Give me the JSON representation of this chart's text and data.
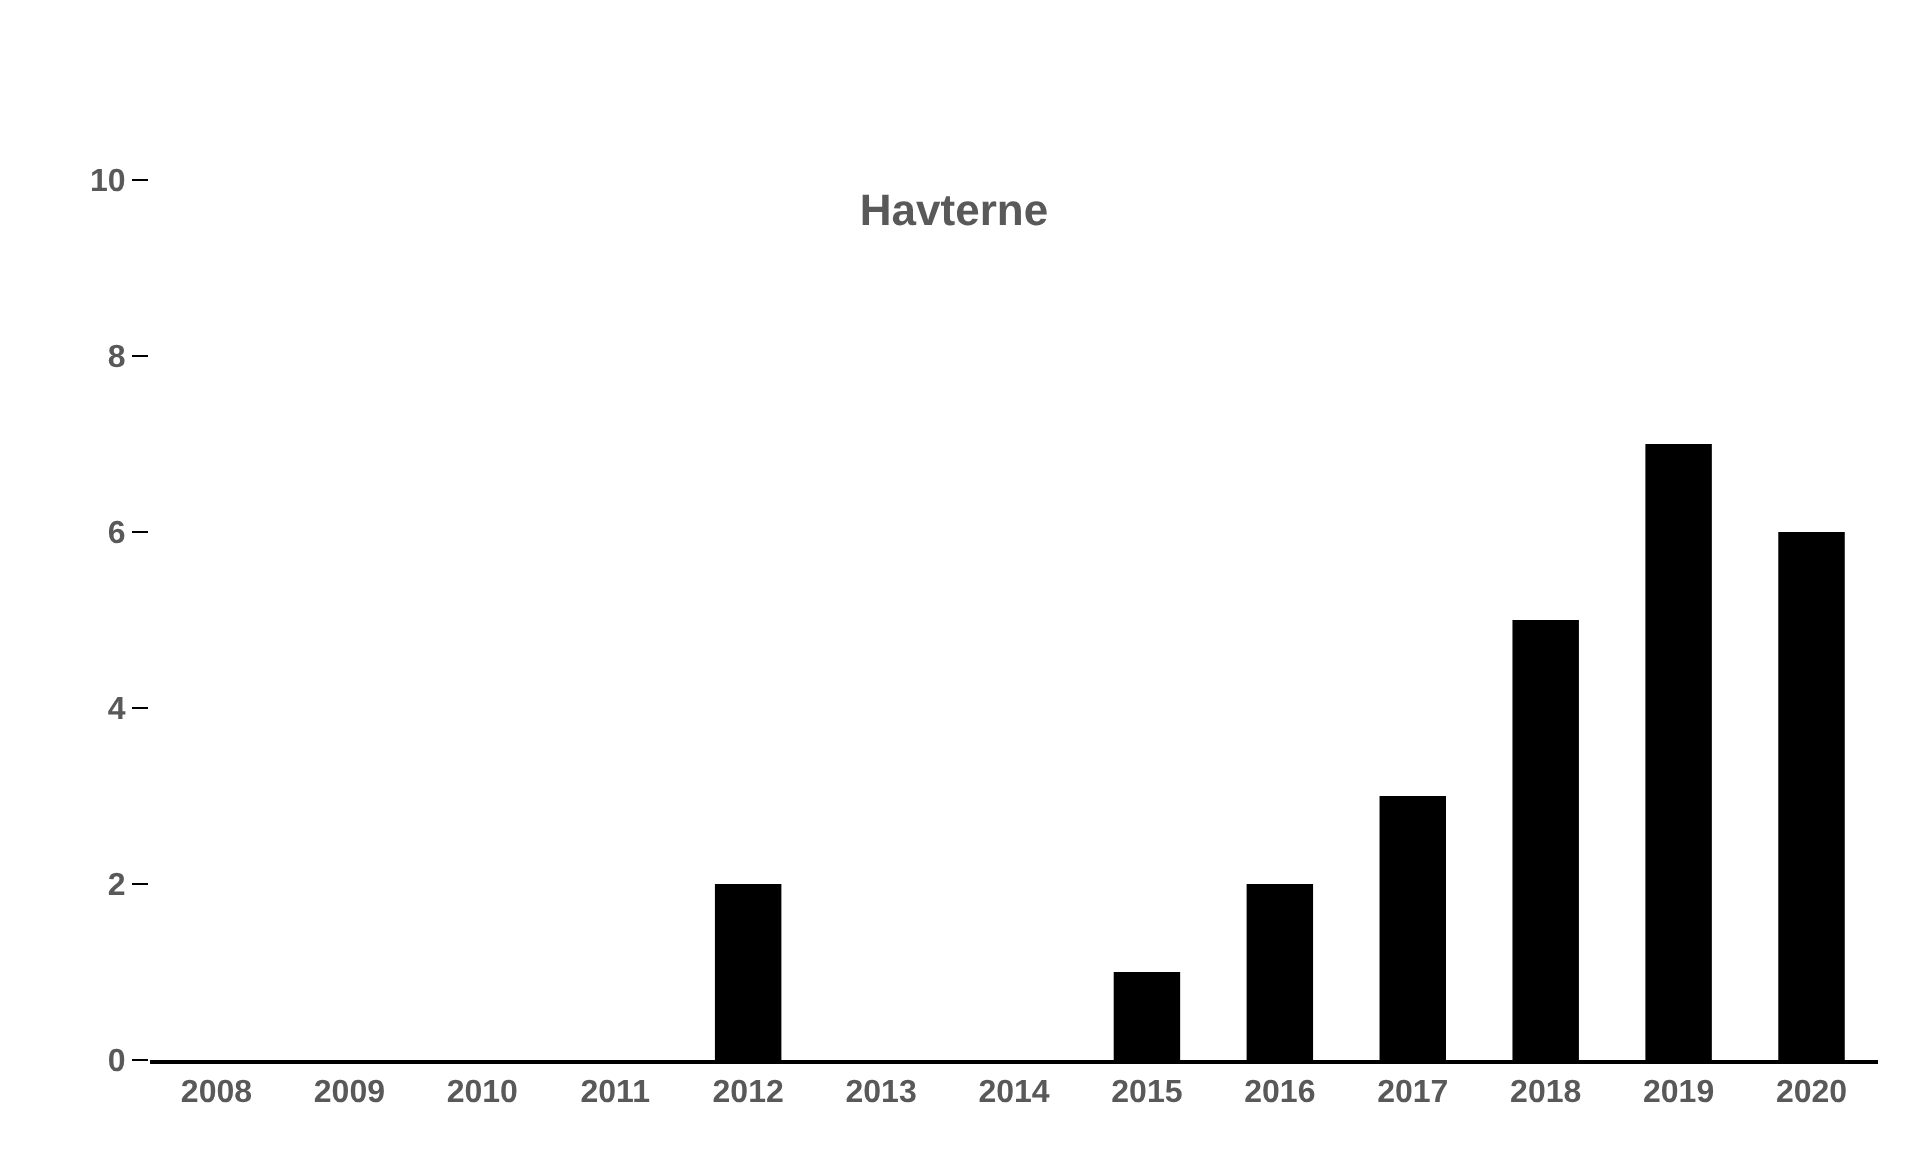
{
  "chart_data": {
    "type": "bar",
    "title": "Havterne",
    "categories": [
      "2008",
      "2009",
      "2010",
      "2011",
      "2012",
      "2013",
      "2014",
      "2015",
      "2016",
      "2017",
      "2018",
      "2019",
      "2020"
    ],
    "values": [
      0,
      0,
      0,
      0,
      2,
      0,
      0,
      1,
      2,
      3,
      5,
      7,
      6
    ],
    "color": "#000000",
    "ylim": [
      0,
      10
    ],
    "yticks": [
      0,
      2,
      4,
      6,
      8,
      10
    ],
    "grid": false
  }
}
